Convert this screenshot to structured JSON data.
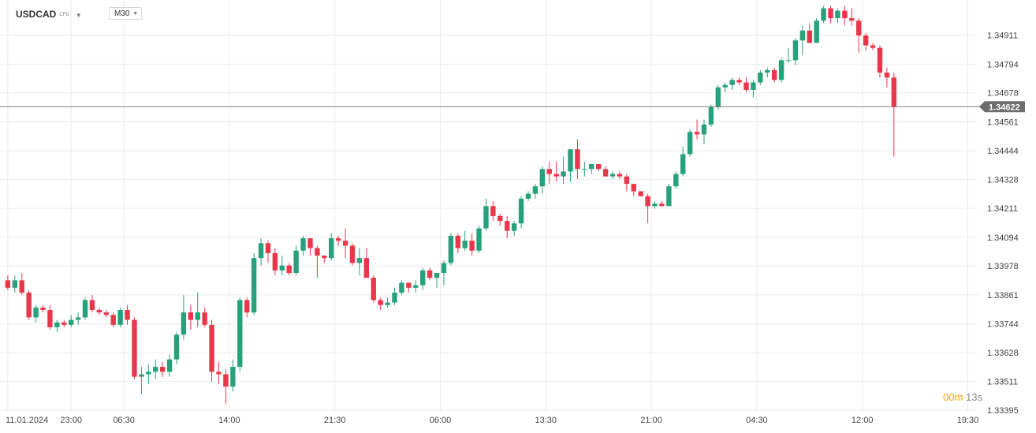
{
  "toolbar": {
    "symbol": "USDCAD",
    "symbol_type": "CFD",
    "timeframe": "M30"
  },
  "countdown": {
    "minutes": "00",
    "m_label": "m",
    "seconds": "13s"
  },
  "colors": {
    "up": "#26a17b",
    "down": "#e8374a",
    "grid": "#ececec",
    "price_line": "#7f7f7f",
    "price_tag": "#6d6d6d"
  },
  "chart_data": {
    "type": "candlestick",
    "current_price": "1.34622",
    "ylim": [
      1.33395,
      1.35028
    ],
    "y_ticks": [
      "1.34911",
      "1.34794",
      "1.34678",
      "1.34561",
      "1.34444",
      "1.34328",
      "1.34211",
      "1.34094",
      "1.33978",
      "1.33861",
      "1.33744",
      "1.33628",
      "1.33511",
      "1.33395"
    ],
    "x_ticks": [
      {
        "label": "11.01.2024",
        "index": 0
      },
      {
        "label": "23:00",
        "index": 9
      },
      {
        "label": "06:30",
        "index": 16.5
      },
      {
        "label": "14:00",
        "index": 31.5
      },
      {
        "label": "21:30",
        "index": 46.5
      },
      {
        "label": "06:00",
        "index": 61.5
      },
      {
        "label": "13:30",
        "index": 76.5
      },
      {
        "label": "21:00",
        "index": 91.5
      },
      {
        "label": "04:30",
        "index": 106.5
      },
      {
        "label": "12:00",
        "index": 121.5
      },
      {
        "label": "19:30",
        "index": 136.5
      }
    ],
    "candles": [
      [
        1.3392,
        1.3394,
        1.3388,
        1.3389
      ],
      [
        1.3389,
        1.3394,
        1.3387,
        1.3392
      ],
      [
        1.3392,
        1.3395,
        1.3386,
        1.3387
      ],
      [
        1.3387,
        1.3388,
        1.3376,
        1.3377
      ],
      [
        1.3377,
        1.3382,
        1.3375,
        1.3381
      ],
      [
        1.3381,
        1.3382,
        1.3379,
        1.338
      ],
      [
        1.338,
        1.3382,
        1.3372,
        1.3373
      ],
      [
        1.3373,
        1.3376,
        1.3371,
        1.3375
      ],
      [
        1.3375,
        1.3376,
        1.3373,
        1.3374
      ],
      [
        1.3374,
        1.3378,
        1.3373,
        1.3376
      ],
      [
        1.3376,
        1.3379,
        1.3374,
        1.3377
      ],
      [
        1.3377,
        1.3385,
        1.3376,
        1.3384
      ],
      [
        1.3384,
        1.3386,
        1.3379,
        1.338
      ],
      [
        1.338,
        1.3381,
        1.3378,
        1.3379
      ],
      [
        1.3379,
        1.338,
        1.3377,
        1.3378
      ],
      [
        1.3378,
        1.3379,
        1.3373,
        1.3374
      ],
      [
        1.3374,
        1.3381,
        1.3373,
        1.338
      ],
      [
        1.338,
        1.3382,
        1.3374,
        1.3376
      ],
      [
        1.3376,
        1.3377,
        1.3352,
        1.3353
      ],
      [
        1.3353,
        1.3357,
        1.3346,
        1.3354
      ],
      [
        1.3354,
        1.3358,
        1.335,
        1.3355
      ],
      [
        1.3355,
        1.336,
        1.3352,
        1.3357
      ],
      [
        1.3357,
        1.3359,
        1.3353,
        1.3355
      ],
      [
        1.3355,
        1.3362,
        1.3353,
        1.336
      ],
      [
        1.336,
        1.3371,
        1.3358,
        1.337
      ],
      [
        1.337,
        1.3386,
        1.3368,
        1.3379
      ],
      [
        1.3379,
        1.3382,
        1.3372,
        1.3376
      ],
      [
        1.3376,
        1.3387,
        1.3373,
        1.3379
      ],
      [
        1.3379,
        1.3381,
        1.3373,
        1.3374
      ],
      [
        1.3374,
        1.3376,
        1.3351,
        1.3355
      ],
      [
        1.3355,
        1.3359,
        1.335,
        1.3354
      ],
      [
        1.3354,
        1.3356,
        1.3342,
        1.3349
      ],
      [
        1.3349,
        1.336,
        1.3347,
        1.3357
      ],
      [
        1.3357,
        1.3385,
        1.3355,
        1.3384
      ],
      [
        1.3384,
        1.3385,
        1.3377,
        1.3379
      ],
      [
        1.3379,
        1.3403,
        1.3378,
        1.3401
      ],
      [
        1.3401,
        1.3409,
        1.3398,
        1.3407
      ],
      [
        1.3407,
        1.3408,
        1.3399,
        1.3403
      ],
      [
        1.3403,
        1.3405,
        1.3394,
        1.3396
      ],
      [
        1.3396,
        1.3402,
        1.3394,
        1.3398
      ],
      [
        1.3398,
        1.3399,
        1.3394,
        1.3395
      ],
      [
        1.3395,
        1.3406,
        1.3394,
        1.3404
      ],
      [
        1.3404,
        1.341,
        1.3402,
        1.3409
      ],
      [
        1.3409,
        1.3409,
        1.3402,
        1.3405
      ],
      [
        1.3405,
        1.3406,
        1.3393,
        1.3402
      ],
      [
        1.3402,
        1.3402,
        1.3399,
        1.3401
      ],
      [
        1.3401,
        1.3411,
        1.34,
        1.3409
      ],
      [
        1.3409,
        1.341,
        1.3406,
        1.3408
      ],
      [
        1.3408,
        1.3413,
        1.3401,
        1.3406
      ],
      [
        1.3406,
        1.3407,
        1.3398,
        1.3399
      ],
      [
        1.3399,
        1.3405,
        1.3394,
        1.3401
      ],
      [
        1.3401,
        1.3405,
        1.3393,
        1.3393
      ],
      [
        1.3393,
        1.3394,
        1.3383,
        1.3384
      ],
      [
        1.3384,
        1.3385,
        1.338,
        1.3382
      ],
      [
        1.3382,
        1.3385,
        1.3381,
        1.3383
      ],
      [
        1.3383,
        1.3389,
        1.3382,
        1.3387
      ],
      [
        1.3387,
        1.3392,
        1.3386,
        1.3391
      ],
      [
        1.3391,
        1.3391,
        1.3387,
        1.3389
      ],
      [
        1.3389,
        1.3392,
        1.3387,
        1.339
      ],
      [
        1.339,
        1.3397,
        1.3388,
        1.3396
      ],
      [
        1.3396,
        1.3397,
        1.3392,
        1.3393
      ],
      [
        1.3393,
        1.3395,
        1.3389,
        1.3395
      ],
      [
        1.3395,
        1.34,
        1.339,
        1.3399
      ],
      [
        1.3399,
        1.3411,
        1.3398,
        1.341
      ],
      [
        1.341,
        1.3411,
        1.3403,
        1.3405
      ],
      [
        1.3405,
        1.3412,
        1.3404,
        1.3408
      ],
      [
        1.3408,
        1.3411,
        1.3402,
        1.3404
      ],
      [
        1.3404,
        1.3414,
        1.3403,
        1.3413
      ],
      [
        1.3413,
        1.3425,
        1.3412,
        1.3422
      ],
      [
        1.3422,
        1.3424,
        1.3416,
        1.3418
      ],
      [
        1.3418,
        1.3419,
        1.3414,
        1.3416
      ],
      [
        1.3416,
        1.3418,
        1.3409,
        1.3412
      ],
      [
        1.3412,
        1.3416,
        1.341,
        1.3415
      ],
      [
        1.3415,
        1.3426,
        1.3413,
        1.3425
      ],
      [
        1.3425,
        1.3428,
        1.3424,
        1.3427
      ],
      [
        1.3427,
        1.3431,
        1.3425,
        1.343
      ],
      [
        1.343,
        1.3438,
        1.3427,
        1.3437
      ],
      [
        1.3437,
        1.344,
        1.3431,
        1.3435
      ],
      [
        1.3435,
        1.344,
        1.3432,
        1.3434
      ],
      [
        1.3434,
        1.3442,
        1.3431,
        1.3436
      ],
      [
        1.3436,
        1.3444,
        1.3432,
        1.3445
      ],
      [
        1.3445,
        1.3449,
        1.3433,
        1.3437
      ],
      [
        1.3437,
        1.344,
        1.3434,
        1.3437
      ],
      [
        1.3437,
        1.3439,
        1.3435,
        1.3439
      ],
      [
        1.3439,
        1.3439,
        1.3436,
        1.3437
      ],
      [
        1.3437,
        1.3438,
        1.3434,
        1.3434
      ],
      [
        1.3434,
        1.3436,
        1.3433,
        1.3435
      ],
      [
        1.3435,
        1.3436,
        1.3433,
        1.3434
      ],
      [
        1.3434,
        1.3435,
        1.3428,
        1.3431
      ],
      [
        1.3431,
        1.3431,
        1.3426,
        1.3428
      ],
      [
        1.3428,
        1.3428,
        1.3426,
        1.3426
      ],
      [
        1.3426,
        1.3427,
        1.3415,
        1.3422
      ],
      [
        1.3422,
        1.3424,
        1.3421,
        1.3423
      ],
      [
        1.3423,
        1.3424,
        1.3422,
        1.3422
      ],
      [
        1.3422,
        1.3431,
        1.3422,
        1.343
      ],
      [
        1.343,
        1.3436,
        1.3429,
        1.3435
      ],
      [
        1.3435,
        1.3446,
        1.3434,
        1.3443
      ],
      [
        1.3443,
        1.3453,
        1.3442,
        1.3452
      ],
      [
        1.3452,
        1.3457,
        1.3449,
        1.3451
      ],
      [
        1.3451,
        1.3457,
        1.3447,
        1.3455
      ],
      [
        1.3455,
        1.3463,
        1.3454,
        1.3462
      ],
      [
        1.3462,
        1.3471,
        1.3461,
        1.347
      ],
      [
        1.347,
        1.3472,
        1.3468,
        1.3471
      ],
      [
        1.3471,
        1.3474,
        1.3469,
        1.3473
      ],
      [
        1.3473,
        1.3474,
        1.3471,
        1.3472
      ],
      [
        1.3472,
        1.3474,
        1.3468,
        1.3469
      ],
      [
        1.3469,
        1.3473,
        1.3466,
        1.3472
      ],
      [
        1.3472,
        1.3477,
        1.3471,
        1.3476
      ],
      [
        1.3476,
        1.3478,
        1.3474,
        1.3477
      ],
      [
        1.3477,
        1.3478,
        1.3472,
        1.3473
      ],
      [
        1.3473,
        1.3482,
        1.3472,
        1.3481
      ],
      [
        1.3481,
        1.3486,
        1.348,
        1.3481
      ],
      [
        1.3481,
        1.349,
        1.3479,
        1.3489
      ],
      [
        1.3489,
        1.3495,
        1.3483,
        1.3493
      ],
      [
        1.3493,
        1.3496,
        1.3489,
        1.3488
      ],
      [
        1.3488,
        1.3498,
        1.3489,
        1.3497
      ],
      [
        1.3497,
        1.3503,
        1.3496,
        1.3502
      ],
      [
        1.3502,
        1.3503,
        1.3496,
        1.3498
      ],
      [
        1.3498,
        1.3502,
        1.3496,
        1.3501
      ],
      [
        1.3501,
        1.3503,
        1.3495,
        1.3498
      ],
      [
        1.3498,
        1.3502,
        1.3495,
        1.3497
      ],
      [
        1.3497,
        1.3498,
        1.3484,
        1.3491
      ],
      [
        1.3491,
        1.3492,
        1.3485,
        1.3487
      ],
      [
        1.3487,
        1.3488,
        1.3485,
        1.3486
      ],
      [
        1.3486,
        1.3487,
        1.3474,
        1.3476
      ],
      [
        1.3476,
        1.3478,
        1.347,
        1.3474
      ],
      [
        1.3474,
        1.3476,
        1.3442,
        1.3462
      ]
    ]
  }
}
